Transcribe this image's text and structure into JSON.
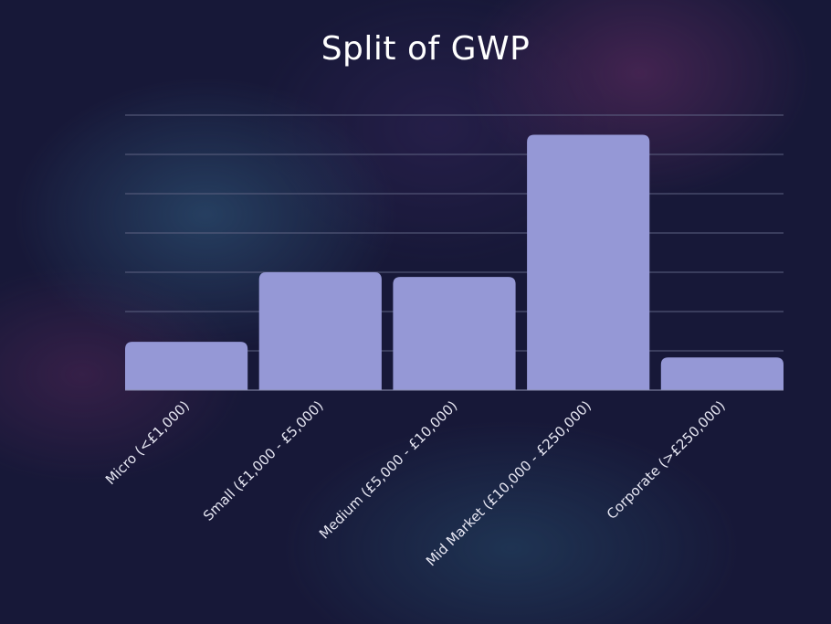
{
  "chart_data": {
    "type": "bar",
    "title": "Split of GWP",
    "xlabel": "",
    "ylabel": "",
    "categories": [
      "Micro (<£1,000)",
      "Small (£1,000 - £5,000)",
      "Medium (£5,000 - £10,000)",
      "Mid Market (£10,000 - £250,000)",
      "Corporate (>£250,000)"
    ],
    "values": [
      12.3,
      30,
      28.8,
      65,
      8.3
    ],
    "ylim": [
      0,
      70
    ],
    "grid": true,
    "legend": "none",
    "bar_color": "#9598d6"
  }
}
